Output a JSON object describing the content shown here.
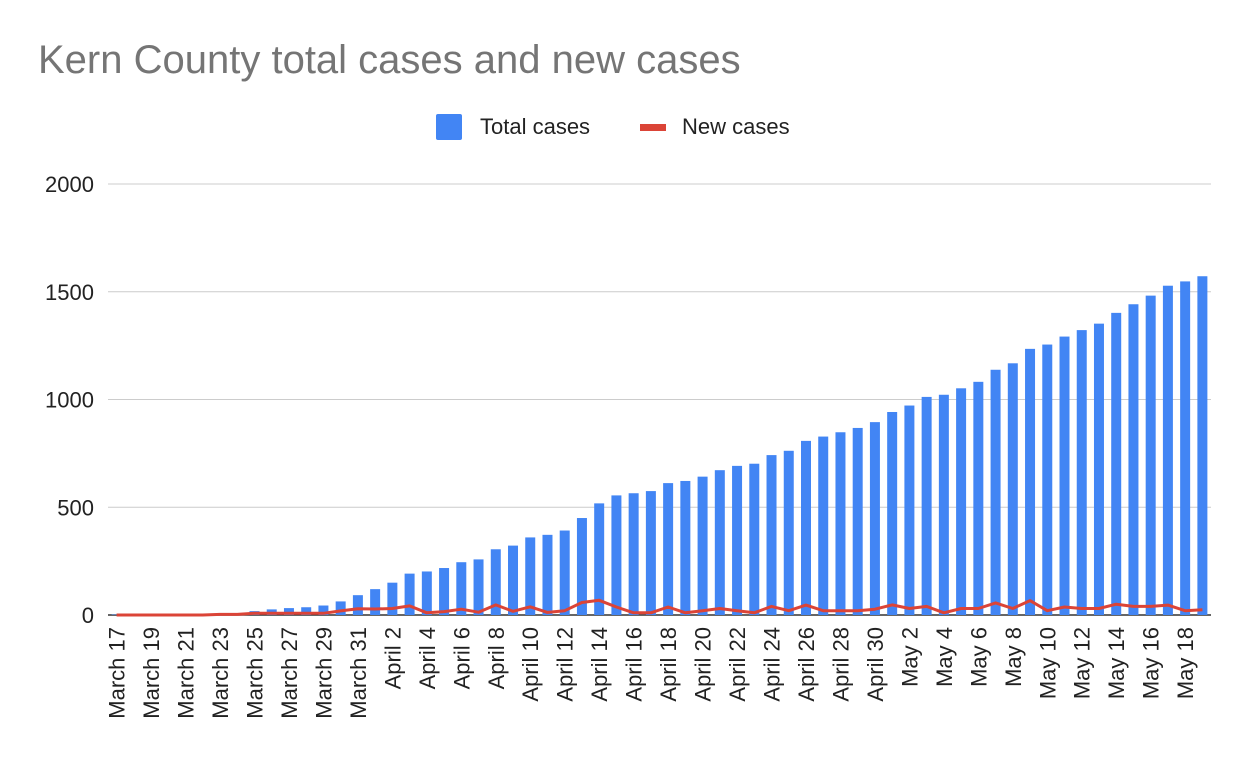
{
  "chart_data": {
    "type": "bar",
    "title": "Kern County total cases and new cases",
    "xlabel": "",
    "ylabel": "",
    "ylim": [
      0,
      2000
    ],
    "yticks": [
      0,
      500,
      1000,
      1500,
      2000
    ],
    "grid": true,
    "legend_position": "top-center",
    "colors": {
      "total": "#4285f4",
      "new": "#db4437"
    },
    "categories": [
      "March 17",
      "March 18",
      "March 19",
      "March 20",
      "March 21",
      "March 22",
      "March 23",
      "March 24",
      "March 25",
      "March 26",
      "March 27",
      "March 28",
      "March 29",
      "March 30",
      "March 31",
      "April 1",
      "April 2",
      "April 3",
      "April 4",
      "April 5",
      "April 6",
      "April 7",
      "April 8",
      "April 9",
      "April 10",
      "April 11",
      "April 12",
      "April 13",
      "April 14",
      "April 15",
      "April 16",
      "April 17",
      "April 18",
      "April 19",
      "April 20",
      "April 21",
      "April 22",
      "April 23",
      "April 24",
      "April 25",
      "April 26",
      "April 27",
      "April 28",
      "April 29",
      "April 30",
      "May 1",
      "May 2",
      "May 3",
      "May 4",
      "May 5",
      "May 6",
      "May 7",
      "May 8",
      "May 9",
      "May 10",
      "May 11",
      "May 12",
      "May 13",
      "May 14",
      "May 15",
      "May 16",
      "May 17",
      "May 18",
      "May 19"
    ],
    "x_tick_labels": [
      "March 17",
      "March 19",
      "March 21",
      "March 23",
      "March 25",
      "March 27",
      "March 29",
      "March 31",
      "April 2",
      "April 4",
      "April 6",
      "April 8",
      "April 10",
      "April 12",
      "April 14",
      "April 16",
      "April 18",
      "April 20",
      "April 22",
      "April 24",
      "April 26",
      "April 28",
      "April 30",
      "May 2",
      "May 4",
      "May 6",
      "May 8",
      "May 10",
      "May 12",
      "May 14",
      "May 16",
      "May 18"
    ],
    "series": [
      {
        "name": "Total cases",
        "type": "bar",
        "values": [
          2,
          2,
          2,
          2,
          2,
          2,
          5,
          8,
          18,
          26,
          32,
          36,
          44,
          63,
          92,
          120,
          150,
          192,
          202,
          218,
          245,
          258,
          305,
          322,
          360,
          372,
          392,
          450,
          518,
          555,
          565,
          575,
          612,
          622,
          642,
          672,
          692,
          702,
          742,
          762,
          808,
          828,
          848,
          868,
          895,
          942,
          972,
          1012,
          1022,
          1052,
          1082,
          1138,
          1168,
          1235,
          1255,
          1292,
          1322,
          1352,
          1402,
          1442,
          1482,
          1528,
          1548,
          1572
        ]
      },
      {
        "name": "New cases",
        "type": "line",
        "values": [
          0,
          0,
          0,
          0,
          0,
          0,
          3,
          3,
          8,
          8,
          8,
          8,
          8,
          19,
          29,
          28,
          30,
          42,
          10,
          16,
          27,
          13,
          47,
          17,
          38,
          12,
          20,
          58,
          68,
          37,
          10,
          10,
          37,
          10,
          20,
          30,
          20,
          10,
          40,
          20,
          46,
          20,
          20,
          20,
          27,
          47,
          30,
          40,
          10,
          30,
          30,
          56,
          30,
          67,
          20,
          37,
          30,
          30,
          50,
          40,
          40,
          46,
          20,
          24
        ]
      }
    ]
  }
}
